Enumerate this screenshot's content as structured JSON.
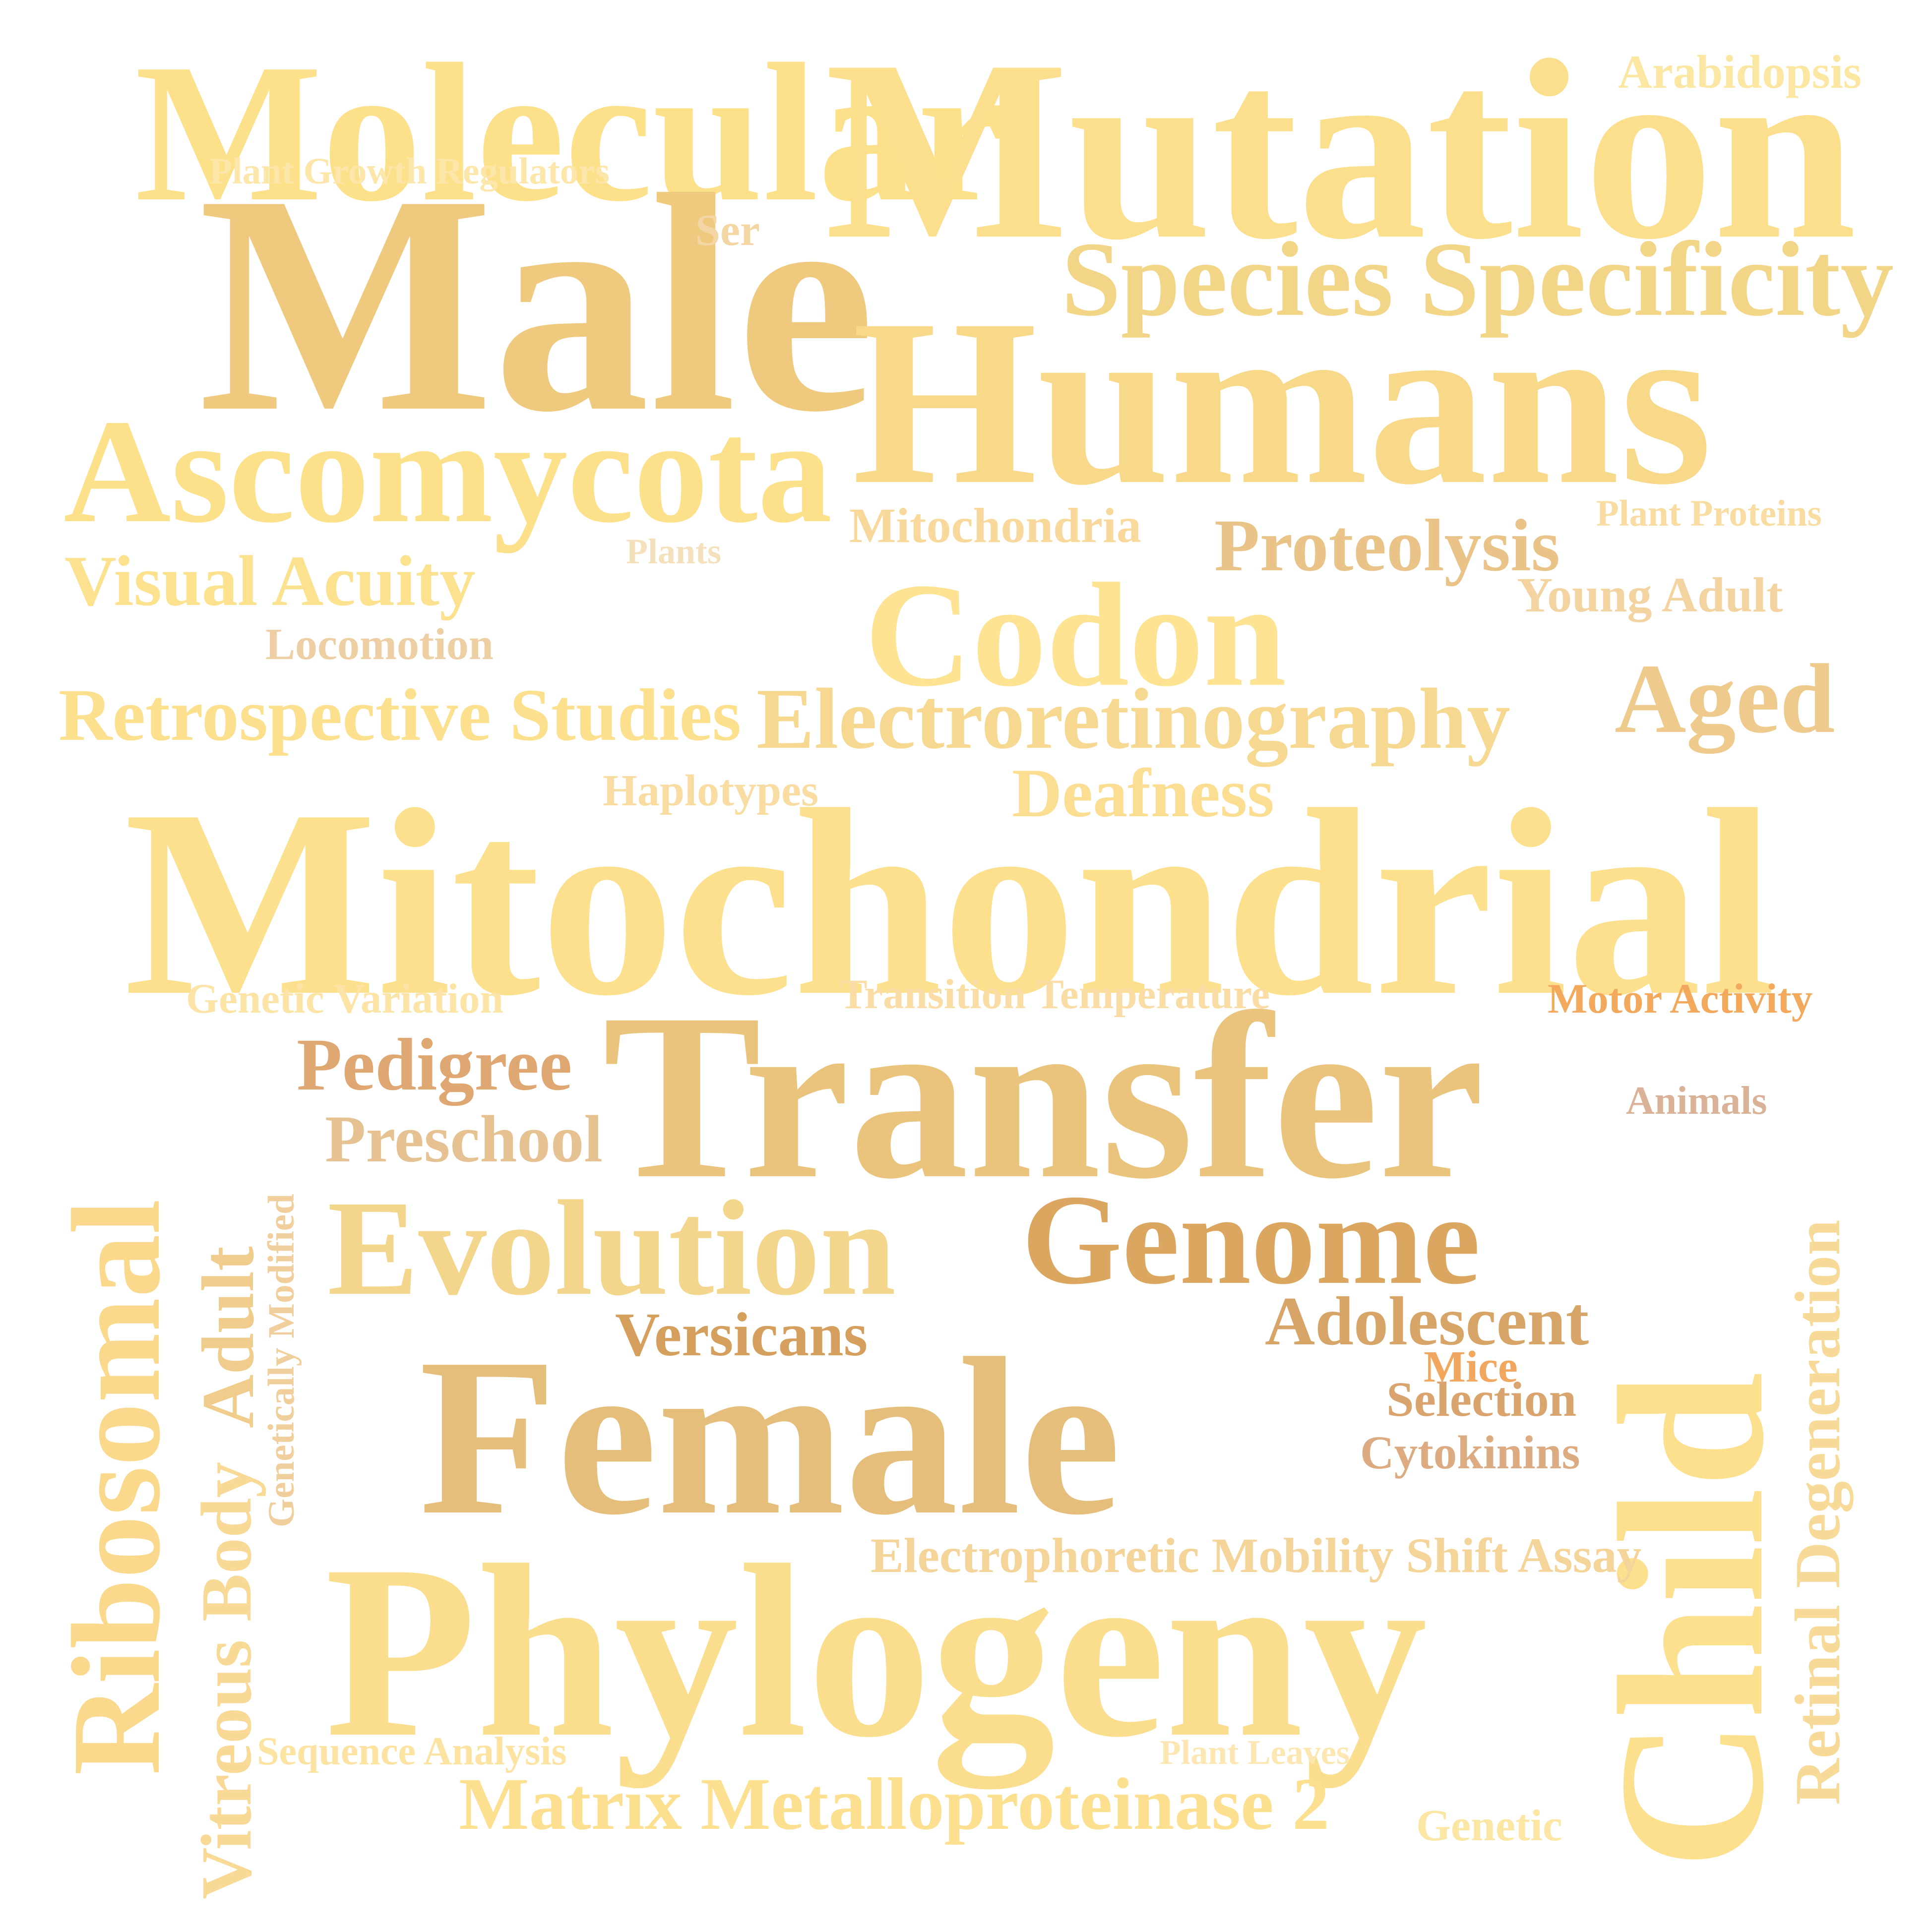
{
  "words": [
    {
      "text": "Molecular",
      "color": "#FDE08A"
    },
    {
      "text": "Mutation",
      "color": "#FCDF8C"
    },
    {
      "text": "Arabidopsis",
      "color": "#FCE7A2"
    },
    {
      "text": "Plant Growth Regulators",
      "color": "#FCE6A9"
    },
    {
      "text": "Male",
      "color": "#EFCA7E"
    },
    {
      "text": "Ser",
      "color": "#F4D6A4"
    },
    {
      "text": "Species Specificity",
      "color": "#F3D588"
    },
    {
      "text": "Humans",
      "color": "#F8D98A"
    },
    {
      "text": "Ascomycota",
      "color": "#FDE08A"
    },
    {
      "text": "Mitochondria",
      "color": "#F8D99B"
    },
    {
      "text": "Plant Proteins",
      "color": "#F8DCA1"
    },
    {
      "text": "Plants",
      "color": "#F5E0BC"
    },
    {
      "text": "Proteolysis",
      "color": "#E9C387"
    },
    {
      "text": "Visual Acuity",
      "color": "#FCE18E"
    },
    {
      "text": "Young Adult",
      "color": "#F3D3A0"
    },
    {
      "text": "Codon",
      "color": "#FDE392"
    },
    {
      "text": "Locomotion",
      "color": "#EECFA3"
    },
    {
      "text": "Aged",
      "color": "#EECB8C"
    },
    {
      "text": "Retrospective Studies",
      "color": "#FCE08E"
    },
    {
      "text": "Electroretinography",
      "color": "#F7D890"
    },
    {
      "text": "Haplotypes",
      "color": "#F8DCA2"
    },
    {
      "text": "Deafness",
      "color": "#FBDE92"
    },
    {
      "text": "Mitochondrial",
      "color": "#FDE08D"
    },
    {
      "text": "Genetic Variation",
      "color": "#FCE4A6"
    },
    {
      "text": "Transition Temperature",
      "color": "#F9DDA4"
    },
    {
      "text": "Motor Activity",
      "color": "#F2A95C"
    },
    {
      "text": "Transfer",
      "color": "#EAC37C"
    },
    {
      "text": "Pedigree",
      "color": "#DFA772"
    },
    {
      "text": "Animals",
      "color": "#DAB298"
    },
    {
      "text": "Preschool",
      "color": "#E6C293"
    },
    {
      "text": "Ribosomal",
      "color": "#FAD98C"
    },
    {
      "text": "Vitreous Body",
      "color": "#F8D995"
    },
    {
      "text": "Adult",
      "color": "#F0CD8C"
    },
    {
      "text": "Genetically Modified",
      "color": "#F1CF9D"
    },
    {
      "text": "Evolution",
      "color": "#F3D58C"
    },
    {
      "text": "Genome",
      "color": "#DBA65F"
    },
    {
      "text": "Child",
      "color": "#FCE08E"
    },
    {
      "text": "Retinal Degeneration",
      "color": "#F8DA98"
    },
    {
      "text": "Versicans",
      "color": "#D59F5E"
    },
    {
      "text": "Adolescent",
      "color": "#D7A568"
    },
    {
      "text": "Mice",
      "color": "#F2A75F"
    },
    {
      "text": "Selection",
      "color": "#D9A46E"
    },
    {
      "text": "Female",
      "color": "#E6BE7B"
    },
    {
      "text": "Cytokinins",
      "color": "#DCAB82"
    },
    {
      "text": "Electrophoretic Mobility Shift Assay",
      "color": "#F4D499"
    },
    {
      "text": "Phylogeny",
      "color": "#FBDD8E"
    },
    {
      "text": "Sequence Analysis",
      "color": "#FCE3A1"
    },
    {
      "text": "Plant Leaves",
      "color": "#FCE7B3"
    },
    {
      "text": "Matrix Metalloproteinase 2",
      "color": "#FCE090"
    },
    {
      "text": "Genetic",
      "color": "#FCE6A4"
    }
  ]
}
